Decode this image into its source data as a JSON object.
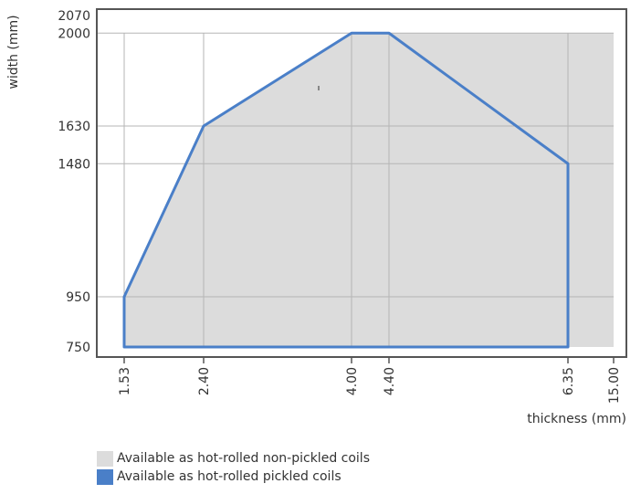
{
  "chart_data": {
    "type": "area",
    "xlabel": "thickness (mm)",
    "ylabel": "width (mm)",
    "x_ticks": [
      "1.53",
      "2.40",
      "4.00",
      "4.40",
      "6.35",
      "15.00"
    ],
    "y_ticks": [
      "750",
      "950",
      "1480",
      "1630",
      "2000",
      "2070"
    ],
    "ylim": [
      750,
      2070
    ],
    "grid": true,
    "legend_position": "bottom-left",
    "series": [
      {
        "name": "Available as hot-rolled non-pickled coils",
        "color": "#dcdcdc",
        "points": [
          {
            "x": "1.53",
            "y": 750
          },
          {
            "x": "1.53",
            "y": 950
          },
          {
            "x": "2.40",
            "y": 1630
          },
          {
            "x": "4.00",
            "y": 2000
          },
          {
            "x": "15.00",
            "y": 2000
          },
          {
            "x": "15.00",
            "y": 750
          }
        ]
      },
      {
        "name": "Available as hot-rolled pickled coils",
        "color": "#4a7fc8",
        "points": [
          {
            "x": "1.53",
            "y": 750
          },
          {
            "x": "1.53",
            "y": 950
          },
          {
            "x": "2.40",
            "y": 1630
          },
          {
            "x": "4.00",
            "y": 2000
          },
          {
            "x": "4.40",
            "y": 2000
          },
          {
            "x": "6.35",
            "y": 1480
          },
          {
            "x": "6.35",
            "y": 750
          }
        ]
      }
    ]
  }
}
